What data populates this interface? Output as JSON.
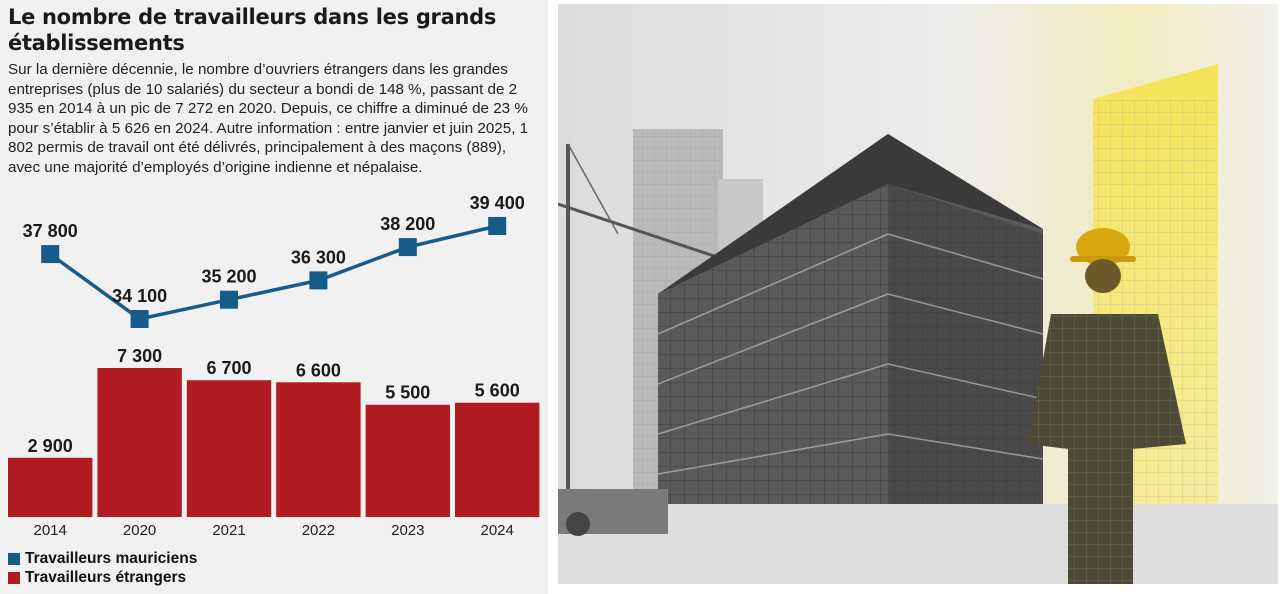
{
  "title": "Le nombre de travailleurs dans les grands établissements",
  "description": "Sur la dernière décennie, le nombre d’ouvriers étrangers dans les grandes entreprises (plus de 10 salariés) du secteur a bondi de 148 %, passant de 2 935 en 2014 à un pic de 7 272 en 2020. Depuis, ce chiffre a diminué de 23 % pour s’établir à 5 626 en 2024. Autre information : entre janvier et juin 2025, 1 802 permis de travail ont été délivrés, principalement à des maçons (889), avec une majorité d’employés d’origine indienne et népalaise.",
  "colors": {
    "mauriciens": "#175b8a",
    "etrangers": "#b01c22",
    "panel": "#f1f1f2"
  },
  "chart_data": {
    "type": "bar+line",
    "categories": [
      "2014",
      "2020",
      "2021",
      "2022",
      "2023",
      "2024"
    ],
    "series": [
      {
        "name": "Travailleurs mauriciens",
        "type": "line",
        "color": "#175b8a",
        "values": [
          37800,
          34100,
          35200,
          36300,
          38200,
          39400
        ],
        "labels": [
          "37 800",
          "34 100",
          "35 200",
          "36 300",
          "38 200",
          "39 400"
        ]
      },
      {
        "name": "Travailleurs étrangers",
        "type": "bar",
        "color": "#b01c22",
        "values": [
          2900,
          7300,
          6700,
          6600,
          5500,
          5600
        ],
        "labels": [
          "2 900",
          "7 300",
          "6 700",
          "6 600",
          "5 500",
          "5 600"
        ]
      }
    ],
    "legend_position": "bottom-left",
    "grid": false
  },
  "legend": [
    {
      "label": "Travailleurs mauriciens",
      "color": "#175b8a"
    },
    {
      "label": "Travailleurs étrangers",
      "color": "#b01c22"
    }
  ],
  "photo": {
    "subject": "construction-site-with-worker-illustration"
  }
}
